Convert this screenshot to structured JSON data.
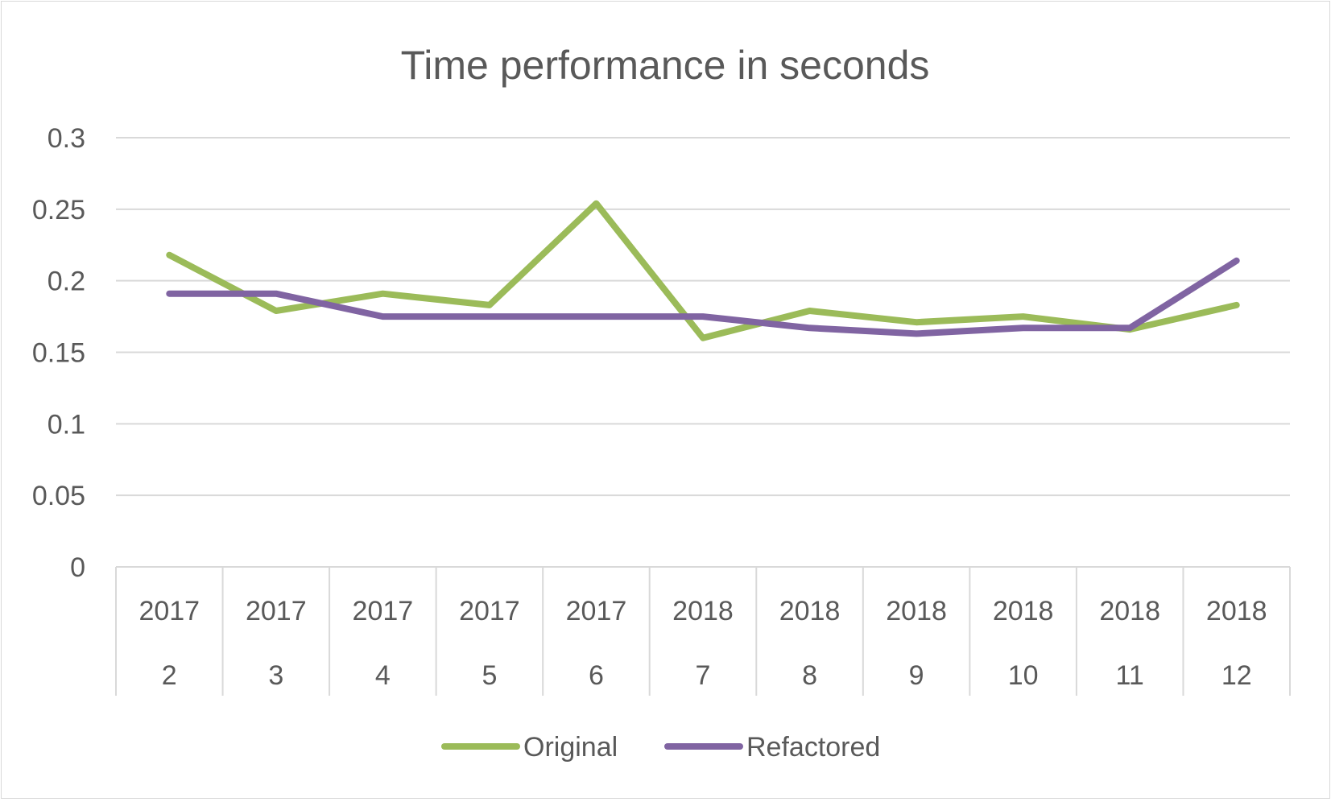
{
  "chart_data": {
    "type": "line",
    "title": "Time performance in seconds",
    "categories": [
      [
        "2017",
        "2"
      ],
      [
        "2017",
        "3"
      ],
      [
        "2017",
        "4"
      ],
      [
        "2017",
        "5"
      ],
      [
        "2017",
        "6"
      ],
      [
        "2018",
        "7"
      ],
      [
        "2018",
        "8"
      ],
      [
        "2018",
        "9"
      ],
      [
        "2018",
        "10"
      ],
      [
        "2018",
        "11"
      ],
      [
        "2018",
        "12"
      ]
    ],
    "series": [
      {
        "name": "Original",
        "color": "#9bbb59",
        "values": [
          0.218,
          0.179,
          0.191,
          0.183,
          0.254,
          0.16,
          0.179,
          0.171,
          0.175,
          0.166,
          0.183
        ]
      },
      {
        "name": "Refactored",
        "color": "#8064a2",
        "values": [
          0.191,
          0.191,
          0.175,
          0.175,
          0.175,
          0.175,
          0.167,
          0.163,
          0.167,
          0.167,
          0.214
        ]
      }
    ],
    "ylim": [
      0,
      0.3
    ],
    "yticks": [
      "0",
      "0.05",
      "0.1",
      "0.15",
      "0.2",
      "0.25",
      "0.3"
    ],
    "grid": true,
    "legend_position": "bottom"
  }
}
